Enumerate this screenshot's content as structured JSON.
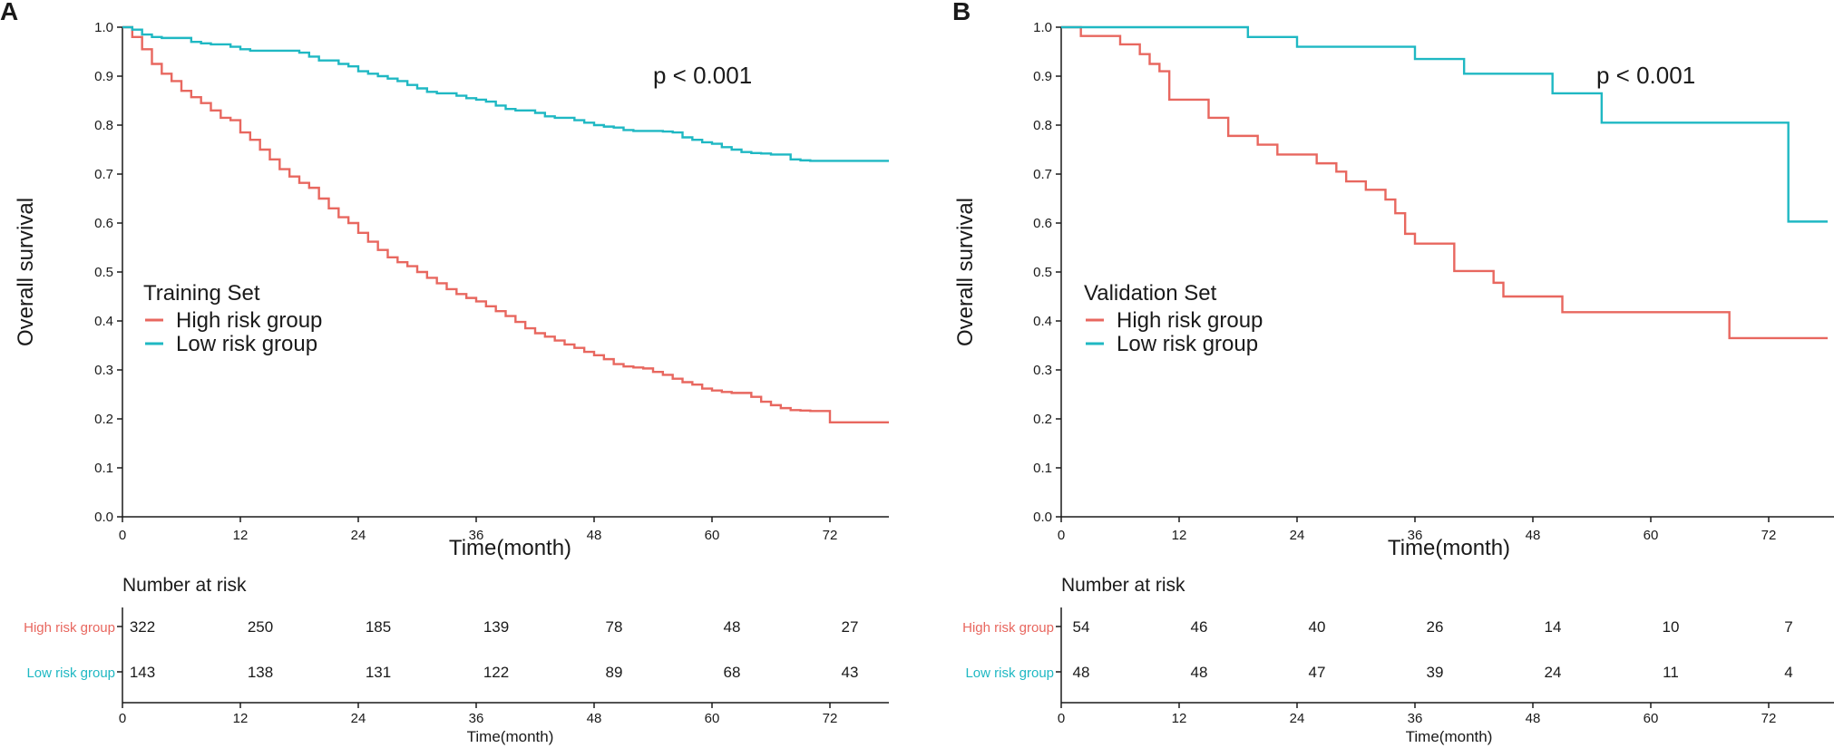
{
  "colors": {
    "high": "#E8675F",
    "low": "#1FB8C3",
    "axis": "#1a1a1a"
  },
  "chart_data": [
    {
      "panel": "A",
      "type": "line",
      "xlabel": "Time(month)",
      "ylabel": "Overall survival",
      "xlim": [
        0,
        78
      ],
      "ylim": [
        0,
        1.0
      ],
      "x_ticks": [
        "0",
        "12",
        "24",
        "36",
        "48",
        "60",
        "72"
      ],
      "y_ticks": [
        "0.0",
        "0.1",
        "0.2",
        "0.3",
        "0.4",
        "0.5",
        "0.6",
        "0.7",
        "0.8",
        "0.9",
        "1.0"
      ],
      "p_value": "p < 0.001",
      "legend": {
        "title": "Training Set",
        "entries": [
          "High risk group",
          "Low risk group"
        ]
      },
      "series": [
        {
          "name": "High risk group",
          "color": "high",
          "x": [
            0,
            1,
            2,
            3,
            4,
            5,
            6,
            7,
            8,
            9,
            10,
            11,
            12,
            13,
            14,
            15,
            16,
            17,
            18,
            19,
            20,
            21,
            22,
            23,
            24,
            25,
            26,
            27,
            28,
            29,
            30,
            31,
            32,
            33,
            34,
            35,
            36,
            37,
            38,
            39,
            40,
            41,
            42,
            43,
            44,
            45,
            46,
            47,
            48,
            49,
            50,
            51,
            52,
            53,
            54,
            55,
            56,
            57,
            58,
            59,
            60,
            61,
            62,
            63,
            64,
            65,
            66,
            67,
            68,
            69,
            70,
            71,
            72,
            78
          ],
          "y": [
            1.0,
            0.98,
            0.955,
            0.925,
            0.905,
            0.89,
            0.87,
            0.857,
            0.845,
            0.83,
            0.815,
            0.81,
            0.785,
            0.77,
            0.75,
            0.73,
            0.71,
            0.695,
            0.682,
            0.672,
            0.65,
            0.63,
            0.612,
            0.6,
            0.58,
            0.562,
            0.545,
            0.53,
            0.52,
            0.512,
            0.5,
            0.488,
            0.477,
            0.465,
            0.455,
            0.447,
            0.44,
            0.43,
            0.42,
            0.41,
            0.398,
            0.385,
            0.375,
            0.368,
            0.36,
            0.352,
            0.345,
            0.337,
            0.33,
            0.322,
            0.312,
            0.307,
            0.305,
            0.303,
            0.296,
            0.29,
            0.282,
            0.275,
            0.27,
            0.262,
            0.258,
            0.255,
            0.253,
            0.253,
            0.245,
            0.235,
            0.228,
            0.222,
            0.218,
            0.217,
            0.216,
            0.216,
            0.193,
            0.193
          ]
        },
        {
          "name": "Low risk group",
          "color": "low",
          "x": [
            0,
            1,
            2,
            3,
            4,
            5,
            6,
            7,
            8,
            9,
            10,
            11,
            12,
            13,
            14,
            15,
            16,
            17,
            18,
            19,
            20,
            21,
            22,
            23,
            24,
            25,
            26,
            27,
            28,
            29,
            30,
            31,
            32,
            33,
            34,
            35,
            36,
            37,
            38,
            39,
            40,
            41,
            42,
            43,
            44,
            45,
            46,
            47,
            48,
            49,
            50,
            51,
            52,
            53,
            54,
            55,
            56,
            57,
            58,
            59,
            60,
            61,
            62,
            63,
            64,
            65,
            66,
            67,
            68,
            69,
            70,
            78
          ],
          "y": [
            1.0,
            0.995,
            0.985,
            0.98,
            0.978,
            0.978,
            0.978,
            0.97,
            0.967,
            0.965,
            0.965,
            0.96,
            0.955,
            0.952,
            0.952,
            0.952,
            0.952,
            0.952,
            0.948,
            0.94,
            0.932,
            0.932,
            0.925,
            0.92,
            0.91,
            0.905,
            0.9,
            0.895,
            0.89,
            0.882,
            0.875,
            0.868,
            0.865,
            0.865,
            0.86,
            0.855,
            0.852,
            0.848,
            0.84,
            0.833,
            0.83,
            0.83,
            0.825,
            0.818,
            0.815,
            0.815,
            0.81,
            0.805,
            0.8,
            0.797,
            0.795,
            0.79,
            0.788,
            0.788,
            0.788,
            0.787,
            0.785,
            0.775,
            0.77,
            0.765,
            0.762,
            0.755,
            0.75,
            0.745,
            0.743,
            0.742,
            0.74,
            0.74,
            0.73,
            0.728,
            0.727,
            0.727
          ]
        }
      ],
      "risk_table": {
        "title": "Number at risk",
        "xlabel": "Time(month)",
        "rows": [
          {
            "label": "High risk group",
            "color": "high",
            "values": [
              "322",
              "250",
              "185",
              "139",
              "78",
              "48",
              "27"
            ]
          },
          {
            "label": "Low risk group",
            "color": "low",
            "values": [
              "143",
              "138",
              "131",
              "122",
              "89",
              "68",
              "43"
            ]
          }
        ]
      }
    },
    {
      "panel": "B",
      "type": "line",
      "xlabel": "Time(month)",
      "ylabel": "Overall survival",
      "xlim": [
        0,
        78
      ],
      "ylim": [
        0,
        1.0
      ],
      "x_ticks": [
        "0",
        "12",
        "24",
        "36",
        "48",
        "60",
        "72"
      ],
      "y_ticks": [
        "0.0",
        "0.1",
        "0.2",
        "0.3",
        "0.4",
        "0.5",
        "0.6",
        "0.7",
        "0.8",
        "0.9",
        "1.0"
      ],
      "p_value": "p < 0.001",
      "legend": {
        "title": "Validation Set",
        "entries": [
          "High risk group",
          "Low risk group"
        ]
      },
      "series": [
        {
          "name": "High risk group",
          "color": "high",
          "x": [
            0,
            2,
            6,
            8,
            9,
            10,
            11,
            12,
            15,
            17,
            20,
            22,
            26,
            28,
            29,
            31,
            33,
            34,
            35,
            36,
            40,
            44,
            45,
            51,
            68,
            78
          ],
          "y": [
            1.0,
            0.982,
            0.965,
            0.945,
            0.925,
            0.91,
            0.852,
            0.852,
            0.815,
            0.778,
            0.76,
            0.74,
            0.722,
            0.705,
            0.685,
            0.668,
            0.648,
            0.62,
            0.578,
            0.558,
            0.502,
            0.478,
            0.45,
            0.418,
            0.365,
            0.365
          ]
        },
        {
          "name": "Low risk group",
          "color": "low",
          "x": [
            0,
            19,
            24,
            36,
            41,
            50,
            55,
            74,
            78
          ],
          "y": [
            1.0,
            0.98,
            0.96,
            0.935,
            0.905,
            0.865,
            0.805,
            0.603,
            0.603
          ]
        }
      ],
      "risk_table": {
        "title": "Number at risk",
        "xlabel": "Time(month)",
        "rows": [
          {
            "label": "High risk group",
            "color": "high",
            "values": [
              "54",
              "46",
              "40",
              "26",
              "14",
              "10",
              "7"
            ]
          },
          {
            "label": "Low risk group",
            "color": "low",
            "values": [
              "48",
              "48",
              "47",
              "39",
              "24",
              "11",
              "4"
            ]
          }
        ]
      }
    }
  ]
}
